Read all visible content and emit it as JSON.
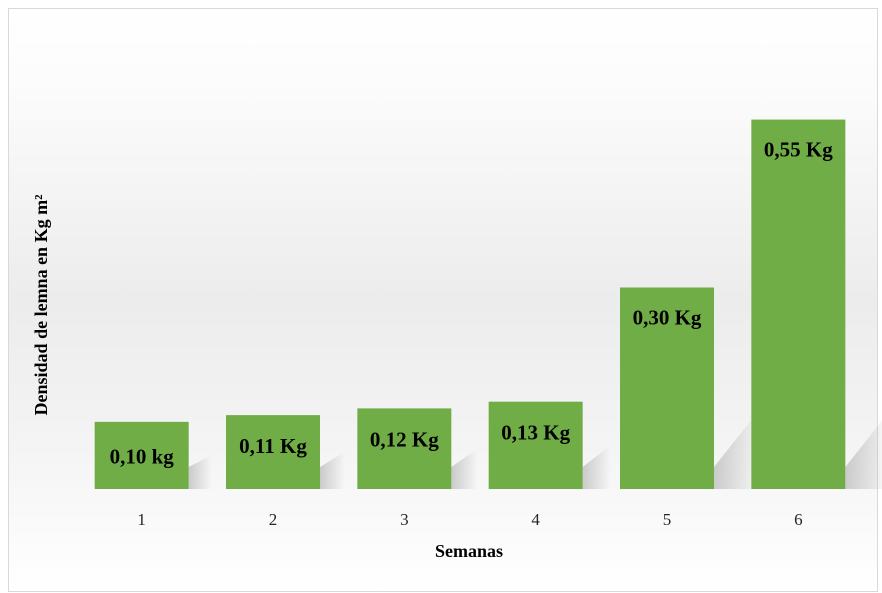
{
  "chart_data": {
    "type": "bar",
    "title": "",
    "xlabel": "Semanas",
    "ylabel": "Densidad de lemna en Kg m²",
    "categories": [
      "1",
      "2",
      "3",
      "4",
      "5",
      "6"
    ],
    "values": [
      0.1,
      0.11,
      0.12,
      0.13,
      0.3,
      0.55
    ],
    "data_labels": [
      "0,10 kg",
      "0,11 Kg",
      "0,12 Kg",
      "0,13 Kg",
      "0,30 Kg",
      "0,55 Kg"
    ],
    "ylim": [
      0,
      0.6
    ],
    "grid": false,
    "legend": "none",
    "bar_color": "#70AD47",
    "shadow_color": "#c8c8c8"
  }
}
